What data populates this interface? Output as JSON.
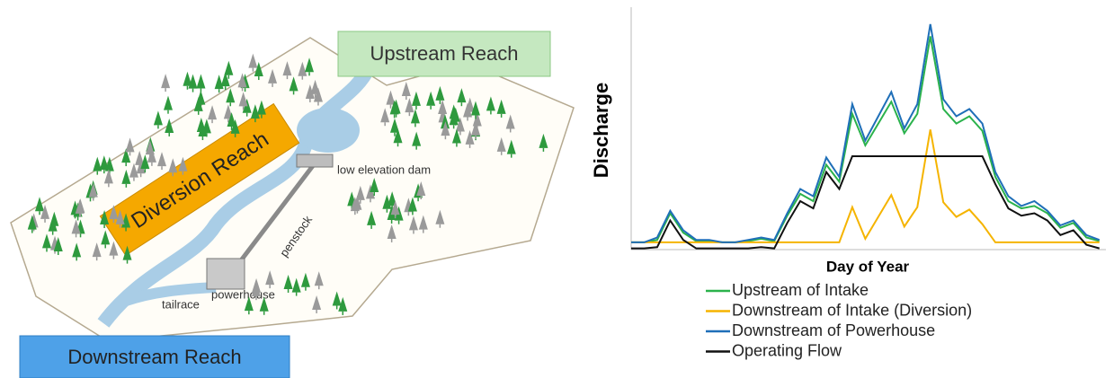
{
  "diagram": {
    "upstream": "Upstream Reach",
    "diversion": "Diversion Reach",
    "dam": "low elevation dam",
    "penstock": "penstock",
    "powerhouse": "powerhouse",
    "tailrace": "tailrace",
    "downstream": "Downstream Reach"
  },
  "chart_data": {
    "type": "line",
    "ylabel": "Discharge",
    "xlabel": "Day of Year",
    "x": [
      0,
      10,
      20,
      30,
      40,
      50,
      60,
      70,
      80,
      90,
      100,
      110,
      120,
      130,
      140,
      150,
      160,
      170,
      180,
      190,
      200,
      210,
      220,
      230,
      240,
      250,
      260,
      270,
      280,
      290,
      300,
      310,
      320,
      330,
      340,
      350,
      360
    ],
    "xlim": [
      0,
      365
    ],
    "ylim": [
      0,
      10
    ],
    "series": [
      {
        "name": "Upstream of Intake",
        "color": "#2bb24c",
        "values": [
          0.3,
          0.3,
          0.4,
          1.5,
          0.7,
          0.35,
          0.35,
          0.3,
          0.3,
          0.35,
          0.45,
          0.35,
          1.4,
          2.3,
          2.0,
          3.5,
          2.8,
          5.6,
          4.3,
          5.2,
          6.1,
          4.8,
          5.6,
          8.8,
          5.8,
          5.2,
          5.5,
          4.9,
          3.0,
          2.0,
          1.7,
          1.8,
          1.5,
          0.9,
          1.1,
          0.5,
          0.35
        ]
      },
      {
        "name": "Downstream of Intake (Diversion)",
        "color": "#f5b400",
        "values": [
          0.3,
          0.3,
          0.3,
          0.3,
          0.3,
          0.3,
          0.3,
          0.3,
          0.3,
          0.3,
          0.3,
          0.3,
          0.3,
          0.3,
          0.3,
          0.3,
          0.3,
          1.75,
          0.45,
          1.35,
          2.25,
          0.95,
          1.75,
          4.95,
          1.95,
          1.35,
          1.65,
          1.05,
          0.3,
          0.3,
          0.3,
          0.3,
          0.3,
          0.3,
          0.3,
          0.3,
          0.3
        ]
      },
      {
        "name": "Downstream of Powerhouse",
        "color": "#1f6fb8",
        "values": [
          0.3,
          0.3,
          0.5,
          1.6,
          0.8,
          0.4,
          0.4,
          0.3,
          0.3,
          0.4,
          0.5,
          0.4,
          1.5,
          2.5,
          2.2,
          3.8,
          3.0,
          6.0,
          4.5,
          5.5,
          6.5,
          5.0,
          6.0,
          9.3,
          6.2,
          5.5,
          5.8,
          5.2,
          3.2,
          2.2,
          1.8,
          2.0,
          1.6,
          1.0,
          1.2,
          0.6,
          0.4
        ]
      },
      {
        "name": "Operating Flow",
        "color": "#111111",
        "values": [
          0.05,
          0.05,
          0.1,
          1.2,
          0.4,
          0.05,
          0.05,
          0.05,
          0.05,
          0.05,
          0.1,
          0.05,
          1.1,
          2.0,
          1.7,
          3.2,
          2.5,
          3.85,
          3.85,
          3.85,
          3.85,
          3.85,
          3.85,
          3.85,
          3.85,
          3.85,
          3.85,
          3.85,
          2.7,
          1.7,
          1.4,
          1.5,
          1.2,
          0.6,
          0.8,
          0.2,
          0.05
        ]
      }
    ]
  }
}
